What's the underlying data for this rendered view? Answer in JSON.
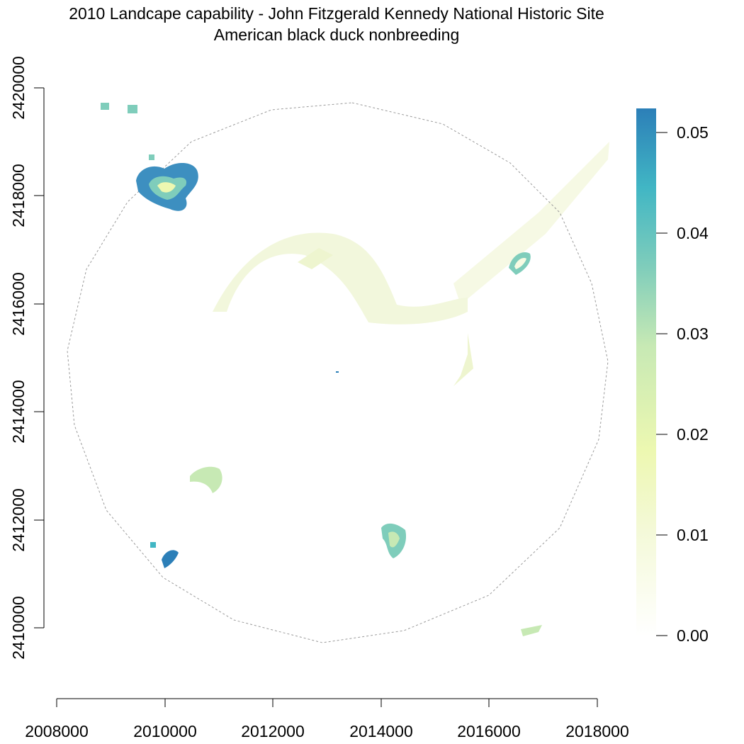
{
  "title": {
    "line1": "2010 Landcape capability - John Fitzgerald Kennedy National Historic Site",
    "line2": "American black duck nonbreeding"
  },
  "map": {
    "x_axis": {
      "ticks": [
        2008000,
        2010000,
        2012000,
        2014000,
        2016000,
        2018000
      ],
      "range": [
        2008000,
        2018000
      ]
    },
    "y_axis": {
      "ticks": [
        2410000,
        2412000,
        2414000,
        2416000,
        2418000,
        2420000
      ],
      "range": [
        2410000,
        2420000
      ]
    },
    "study_area_boundary": "dashed grey polygon (circular buffer around site)",
    "legend": {
      "type": "continuous colorbar",
      "placement": "right",
      "ticks": [
        "0.00",
        "0.01",
        "0.02",
        "0.03",
        "0.04",
        "0.05"
      ],
      "range": [
        0.0,
        0.0525
      ],
      "colors": [
        "#ffffd9",
        "#edf8b1",
        "#c7e9b4",
        "#7fcdbb",
        "#41b6c4",
        "#2c7fb8"
      ]
    },
    "colors": {
      "low": "#f7fbe3",
      "mid": "#c7e9b4",
      "high": "#2c7fb8",
      "boundary": "#9a9a9a"
    }
  }
}
